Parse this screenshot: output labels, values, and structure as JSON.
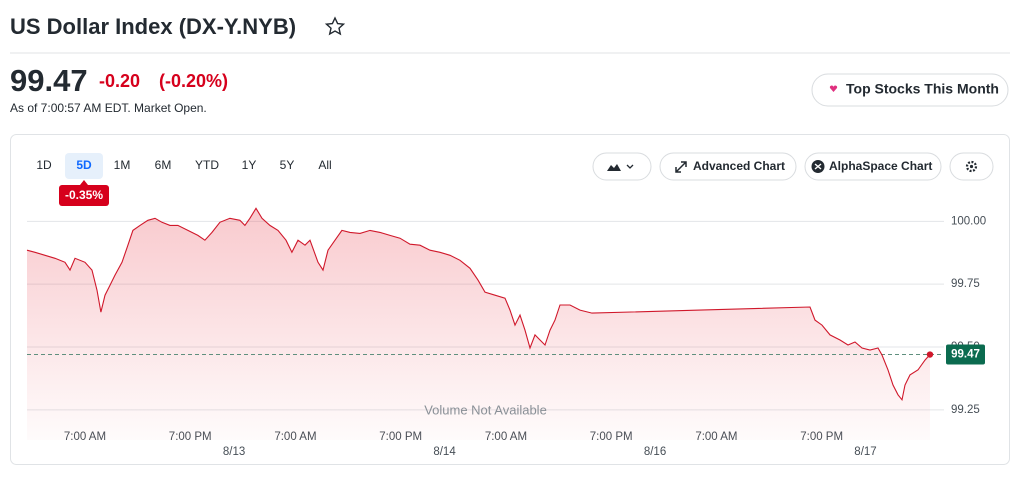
{
  "header": {
    "title": "US Dollar Index (DX-Y.NYB)"
  },
  "quote": {
    "price": "99.47",
    "change": "-0.20",
    "change_percent": "(-0.20%)",
    "as_of": "As of 7:00:57 AM EDT. Market Open."
  },
  "top_stocks_button": "Top Stocks This Month",
  "toolbar": {
    "ranges": [
      "1D",
      "5D",
      "1M",
      "6M",
      "YTD",
      "1Y",
      "5Y",
      "All"
    ],
    "selected": 1,
    "range_change": "-0.35%",
    "advanced_chart": "Advanced Chart",
    "alphaspace_chart": "AlphaSpace Chart"
  },
  "chart_data": {
    "type": "line",
    "color": "#d0182b",
    "x": [
      -6.61,
      -5.7,
      -4.56,
      -3.42,
      -2.28,
      -1.71,
      -1.14,
      0,
      0.8,
      1.37,
      1.82,
      2.28,
      2.85,
      3.42,
      4.22,
      4.9,
      5.47,
      6.27,
      7.18,
      7.98,
      8.78,
      9.69,
      10.6,
      11.74,
      12.88,
      13.68,
      14.48,
      15.39,
      16.53,
      17.67,
      18.24,
      18.81,
      19.5,
      20.18,
      21.09,
      22.01,
      22.92,
      23.6,
      24.29,
      25.09,
      25.66,
      26.57,
      27.14,
      27.71,
      28.51,
      29.3,
      30.22,
      31.36,
      32.5,
      33.64,
      34.78,
      35.92,
      37.06,
      38.2,
      39.34,
      40.48,
      41.62,
      42.76,
      43.9,
      44.81,
      45.61,
      46.75,
      47.89,
      48.46,
      49.03,
      49.6,
      50.17,
      50.74,
      51.31,
      51.88,
      52.45,
      53.02,
      53.59,
      54.16,
      55.3,
      56.44,
      57.81,
      70.13,
      82.67,
      83.24,
      84.04,
      84.95,
      86.09,
      87.0,
      87.8,
      88.6,
      89.51,
      90.42,
      90.88,
      91.56,
      92.13,
      92.7,
      93.16,
      93.5,
      94.07,
      94.98,
      95.78,
      96.35
    ],
    "values": [
      99.885,
      99.877,
      99.865,
      99.853,
      99.837,
      99.806,
      99.853,
      99.837,
      99.806,
      99.726,
      99.639,
      99.706,
      99.746,
      99.786,
      99.837,
      99.905,
      99.964,
      99.984,
      100.004,
      100.012,
      99.996,
      99.984,
      99.984,
      99.964,
      99.944,
      99.925,
      99.956,
      99.996,
      100.012,
      100.004,
      99.984,
      100.012,
      100.052,
      100.012,
      99.984,
      99.964,
      99.925,
      99.877,
      99.925,
      99.905,
      99.925,
      99.837,
      99.806,
      99.885,
      99.925,
      99.964,
      99.956,
      99.952,
      99.964,
      99.956,
      99.944,
      99.933,
      99.909,
      99.905,
      99.885,
      99.877,
      99.865,
      99.845,
      99.813,
      99.766,
      99.718,
      99.706,
      99.694,
      99.647,
      99.587,
      99.627,
      99.567,
      99.496,
      99.548,
      99.528,
      99.508,
      99.567,
      99.607,
      99.667,
      99.667,
      99.647,
      99.635,
      99.647,
      99.659,
      99.607,
      99.587,
      99.548,
      99.528,
      99.508,
      99.52,
      99.496,
      99.488,
      99.496,
      99.468,
      99.409,
      99.349,
      99.31,
      99.29,
      99.349,
      99.389,
      99.409,
      99.448,
      99.47
    ],
    "xlim": [
      -6.61,
      97.95
    ],
    "xticks": [
      {
        "value": 0,
        "label": "7:00 AM"
      },
      {
        "value": 12,
        "label": "7:00 PM"
      },
      {
        "value": 24,
        "label": "7:00 AM"
      },
      {
        "value": 36,
        "label": "7:00 PM"
      },
      {
        "value": 48,
        "label": "7:00 AM"
      },
      {
        "value": 60,
        "label": "7:00 PM"
      },
      {
        "value": 72,
        "label": "7:00 AM"
      },
      {
        "value": 84,
        "label": "7:00 PM"
      }
    ],
    "date_labels": [
      {
        "value": 17,
        "label": "8/13"
      },
      {
        "value": 41,
        "label": "8/14"
      },
      {
        "value": 65,
        "label": "8/16"
      },
      {
        "value": 89,
        "label": "8/17"
      }
    ],
    "ylim": [
      99.13,
      100.065
    ],
    "yticks": [
      {
        "value": 100,
        "label": "100.00"
      },
      99.75,
      {
        "value": 99.5,
        "label": "99.50"
      },
      99.25
    ],
    "grid": true,
    "ref_line": 99.47,
    "annotation": "Volume Not Available"
  }
}
